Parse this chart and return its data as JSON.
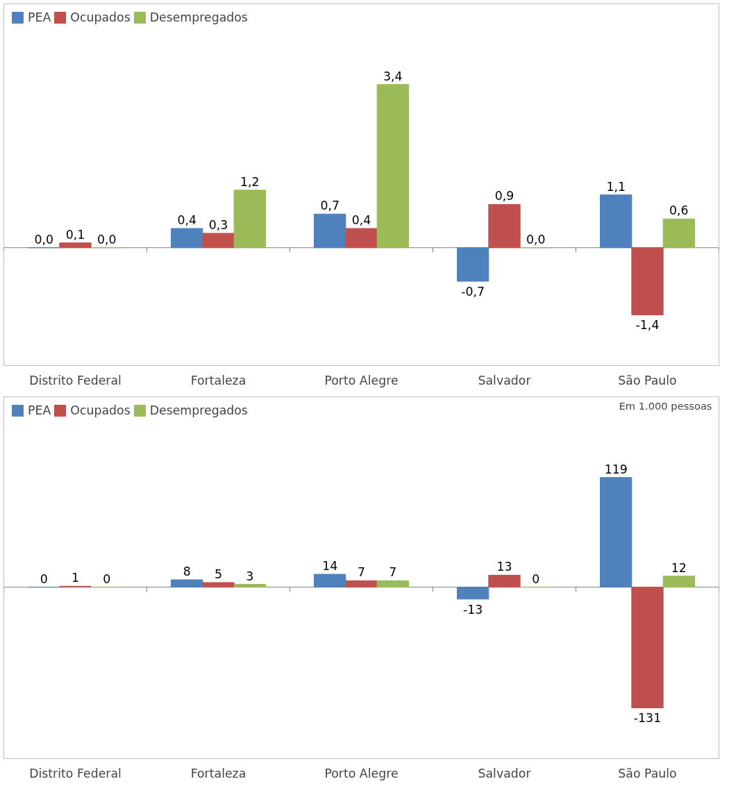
{
  "chart_data": [
    {
      "type": "bar",
      "categories": [
        "Distrito Federal",
        "Fortaleza",
        "Porto Alegre",
        "Salvador",
        "São Paulo"
      ],
      "legend": "top left",
      "grid": false,
      "series": [
        {
          "name": "PEA",
          "color": "#4f81bd",
          "values": [
            0.0,
            0.4,
            0.7,
            -0.7,
            1.1
          ],
          "value_labels": [
            "0,0",
            "0,4",
            "0,7",
            "-0,7",
            "1,1"
          ]
        },
        {
          "name": "Ocupados",
          "color": "#c0504d",
          "values": [
            0.1,
            0.3,
            0.4,
            0.9,
            -1.4
          ],
          "value_labels": [
            "0,1",
            "0,3",
            "0,4",
            "0,9",
            "-1,4"
          ]
        },
        {
          "name": "Desempregados",
          "color": "#9bbb59",
          "values": [
            0.0,
            1.2,
            3.4,
            0.0,
            0.6
          ],
          "value_labels": [
            "0,0",
            "1,2",
            "3,4",
            "0,0",
            "0,6"
          ]
        }
      ]
    },
    {
      "type": "bar",
      "categories": [
        "Distrito Federal",
        "Fortaleza",
        "Porto Alegre",
        "Salvador",
        "São Paulo"
      ],
      "legend": "top left",
      "grid": false,
      "data_labels": true,
      "annotations": [
        "Em 1.000 pessoas"
      ],
      "series": [
        {
          "name": "PEA",
          "color": "#4f81bd",
          "values": [
            0,
            8,
            14,
            -13,
            119
          ]
        },
        {
          "name": "Ocupados",
          "color": "#c0504d",
          "values": [
            1,
            5,
            7,
            13,
            -131
          ]
        },
        {
          "name": "Desempregados",
          "color": "#9bbb59",
          "values": [
            0,
            3,
            7,
            0,
            12
          ]
        }
      ]
    }
  ]
}
